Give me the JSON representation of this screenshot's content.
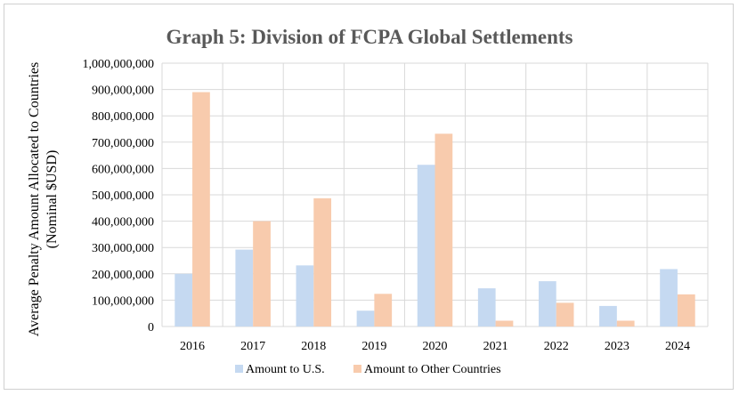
{
  "chart_data": {
    "type": "bar",
    "title": "Graph 5: Division of FCPA Global Settlements",
    "xlabel": "",
    "ylabel_line1": "Average Penalty Amount Allocated to Countries",
    "ylabel_line2": "(Nominal $USD)",
    "ylim": [
      0,
      1000000000
    ],
    "yticks": [
      0,
      100000000,
      200000000,
      300000000,
      400000000,
      500000000,
      600000000,
      700000000,
      800000000,
      900000000,
      1000000000
    ],
    "ytick_labels": [
      "0",
      "100,000,000",
      "200,000,000",
      "300,000,000",
      "400,000,000",
      "500,000,000",
      "600,000,000",
      "700,000,000",
      "800,000,000",
      "900,000,000",
      "1,000,000,000"
    ],
    "grid": true,
    "legend_position": "bottom",
    "categories": [
      "2016",
      "2017",
      "2018",
      "2019",
      "2020",
      "2021",
      "2022",
      "2023",
      "2024"
    ],
    "series": [
      {
        "name": "Amount to U.S.",
        "color": "#c5d9f1",
        "values": [
          200000000,
          292000000,
          232000000,
          60000000,
          614000000,
          145000000,
          172000000,
          78000000,
          218000000
        ]
      },
      {
        "name": "Amount to Other Countries",
        "color": "#f8cbad",
        "values": [
          890000000,
          400000000,
          487000000,
          124000000,
          732000000,
          22000000,
          90000000,
          22000000,
          122000000
        ]
      }
    ]
  }
}
